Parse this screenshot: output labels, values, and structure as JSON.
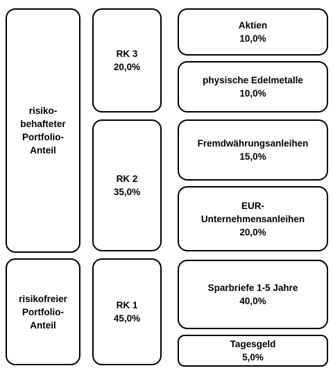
{
  "portfolio_share": {
    "risky": [
      "risiko-",
      "behafteter",
      "Portfolio-",
      "Anteil"
    ],
    "riskfree": [
      "risikofreier",
      "Portfolio-",
      "Anteil"
    ]
  },
  "risk_classes": {
    "rk3": {
      "label": "RK 3",
      "value": "20,0%"
    },
    "rk2": {
      "label": "RK 2",
      "value": "35,0%"
    },
    "rk1": {
      "label": "RK 1",
      "value": "45,0%"
    }
  },
  "assets": {
    "aktien": {
      "label": "Aktien",
      "value": "10,0%"
    },
    "edelmetalle": {
      "label": "physische Edelmetalle",
      "value": "10,0%"
    },
    "fremdwaehrung": {
      "label": "Fremdwährungsanleihen",
      "value": "15,0%"
    },
    "eur_unternehmen": {
      "label_lines": [
        "EUR-",
        "Unternehmensanleihen"
      ],
      "value": "20,0%"
    },
    "sparbriefe": {
      "label": "Sparbriefe 1-5 Jahre",
      "value": "40,0%"
    },
    "tagesgeld": {
      "label": "Tagesgeld",
      "value": "5,0%"
    }
  }
}
